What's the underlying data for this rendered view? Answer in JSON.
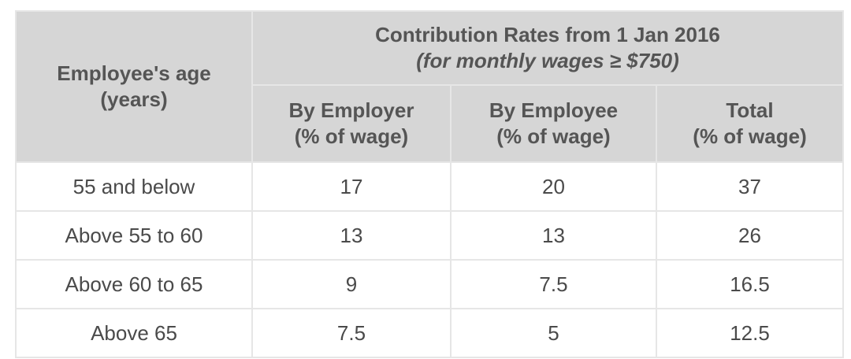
{
  "table": {
    "age_header": {
      "line1": "Employee's age",
      "line2": "(years)"
    },
    "group_header": {
      "line1": "Contribution Rates from 1 Jan 2016",
      "line2": "(for monthly wages ≥ $750)"
    },
    "columns": [
      {
        "line1": "By Employer",
        "line2": "(% of wage)"
      },
      {
        "line1": "By Employee",
        "line2": "(% of wage)"
      },
      {
        "line1": "Total",
        "line2": "(% of wage)"
      }
    ],
    "rows": [
      {
        "age": "55 and below",
        "employer": "17",
        "employee": "20",
        "total": "37"
      },
      {
        "age": "Above 55 to 60",
        "employer": "13",
        "employee": "13",
        "total": "26"
      },
      {
        "age": "Above 60 to 65",
        "employer": "9",
        "employee": "7.5",
        "total": "16.5"
      },
      {
        "age": "Above 65",
        "employer": "7.5",
        "employee": "5",
        "total": "12.5"
      }
    ]
  }
}
